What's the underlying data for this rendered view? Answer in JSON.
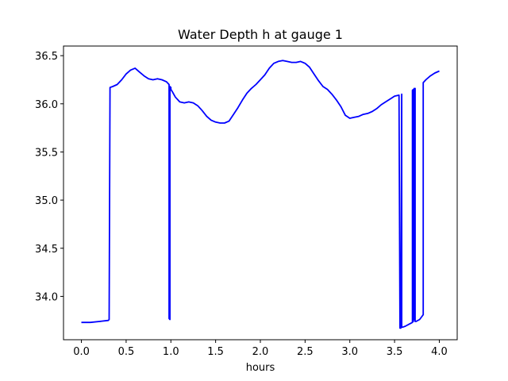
{
  "chart_data": {
    "type": "line",
    "title": "Water Depth h at gauge 1",
    "xlabel": "hours",
    "ylabel": "",
    "xlim": [
      -0.2,
      4.2
    ],
    "ylim": [
      33.55,
      36.6
    ],
    "grid": false,
    "x_ticks": [
      0.0,
      0.5,
      1.0,
      1.5,
      2.0,
      2.5,
      3.0,
      3.5,
      4.0
    ],
    "x_tick_labels": [
      "0.0",
      "0.5",
      "1.0",
      "1.5",
      "2.0",
      "2.5",
      "3.0",
      "3.5",
      "4.0"
    ],
    "y_ticks": [
      34.0,
      34.5,
      35.0,
      35.5,
      36.0,
      36.5
    ],
    "y_tick_labels": [
      "34.0",
      "34.5",
      "35.0",
      "35.5",
      "36.0",
      "36.5"
    ],
    "series": [
      {
        "color": "#0000ff",
        "x": [
          0.0,
          0.1,
          0.2,
          0.3,
          0.31,
          0.32,
          0.35,
          0.4,
          0.45,
          0.5,
          0.55,
          0.6,
          0.65,
          0.7,
          0.75,
          0.8,
          0.85,
          0.9,
          0.95,
          0.98,
          0.98,
          0.99,
          0.99,
          1.0,
          1.0,
          1.02,
          1.05,
          1.1,
          1.15,
          1.2,
          1.25,
          1.3,
          1.35,
          1.4,
          1.45,
          1.5,
          1.55,
          1.6,
          1.65,
          1.7,
          1.75,
          1.8,
          1.85,
          1.9,
          1.95,
          2.0,
          2.05,
          2.1,
          2.15,
          2.2,
          2.25,
          2.3,
          2.35,
          2.4,
          2.45,
          2.5,
          2.55,
          2.6,
          2.65,
          2.7,
          2.75,
          2.8,
          2.85,
          2.9,
          2.95,
          3.0,
          3.05,
          3.1,
          3.15,
          3.2,
          3.25,
          3.3,
          3.35,
          3.4,
          3.45,
          3.5,
          3.55,
          3.56,
          3.57,
          3.58,
          3.58,
          3.59,
          3.62,
          3.66,
          3.7,
          3.7,
          3.71,
          3.71,
          3.72,
          3.72,
          3.73,
          3.73,
          3.74,
          3.78,
          3.82,
          3.82,
          3.85,
          3.9,
          3.95,
          4.0
        ],
        "y": [
          33.73,
          33.73,
          33.74,
          33.75,
          33.76,
          36.17,
          36.18,
          36.2,
          36.25,
          36.31,
          36.35,
          36.37,
          36.33,
          36.29,
          36.26,
          36.25,
          36.26,
          36.25,
          36.23,
          36.2,
          33.77,
          33.76,
          36.18,
          36.17,
          36.15,
          36.12,
          36.07,
          36.02,
          36.01,
          36.02,
          36.01,
          35.98,
          35.93,
          35.87,
          35.83,
          35.81,
          35.8,
          35.8,
          35.82,
          35.89,
          35.96,
          36.04,
          36.11,
          36.16,
          36.2,
          36.25,
          36.3,
          36.37,
          36.42,
          36.44,
          36.45,
          36.44,
          36.43,
          36.43,
          36.44,
          36.42,
          36.38,
          36.31,
          36.24,
          36.18,
          36.15,
          36.1,
          36.04,
          35.97,
          35.88,
          35.85,
          35.86,
          35.87,
          35.89,
          35.9,
          35.92,
          35.95,
          35.99,
          36.02,
          36.05,
          36.08,
          36.09,
          33.67,
          33.67,
          36.1,
          33.68,
          33.68,
          33.69,
          33.71,
          33.73,
          36.14,
          36.15,
          33.74,
          36.16,
          33.76,
          36.16,
          33.74,
          33.74,
          33.76,
          33.81,
          36.22,
          36.25,
          36.29,
          36.32,
          36.34
        ]
      }
    ]
  }
}
